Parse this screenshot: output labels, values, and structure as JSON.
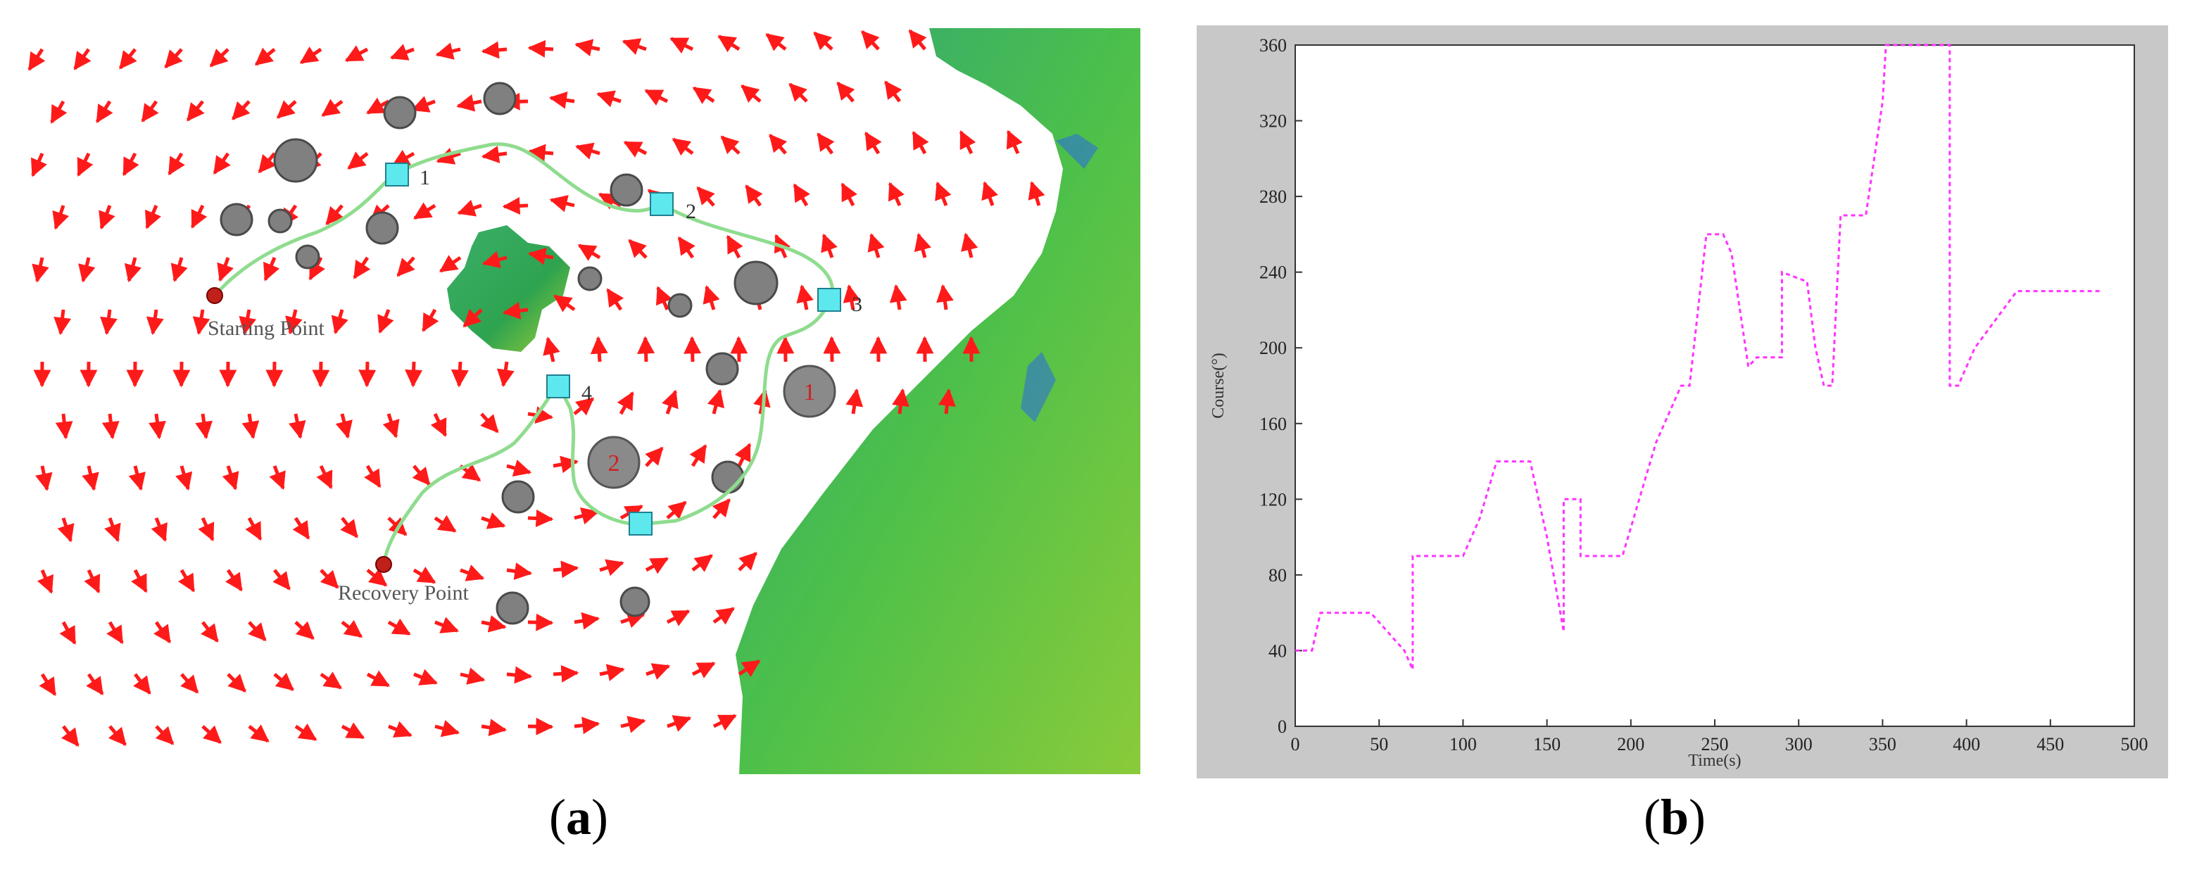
{
  "panel_a": {
    "caption_letter": "a",
    "start_label": "Starting Point",
    "recovery_label": "Recovery Point",
    "waypoints": [
      {
        "label": "1"
      },
      {
        "label": "2"
      },
      {
        "label": "3"
      },
      {
        "label": "4"
      }
    ],
    "targets": [
      {
        "label": "1"
      },
      {
        "label": "2"
      }
    ],
    "colors": {
      "current_arrow": "#ff1a1a",
      "path": "#8fdc8f",
      "waypoint": "#5de8ee",
      "obstacle": "#808080",
      "sea": "#ffffff",
      "land": "#3fae4f"
    }
  },
  "panel_b": {
    "caption_letter": "b",
    "colors": {
      "line": "#ff33ff",
      "frame": "#c8c8c8"
    }
  },
  "chart_data": {
    "type": "line",
    "title": "",
    "xlabel": "Time(s)",
    "ylabel": "Course(°)",
    "xlim": [
      0,
      500
    ],
    "ylim": [
      0,
      360
    ],
    "xticks": [
      0,
      50,
      100,
      150,
      200,
      250,
      300,
      350,
      400,
      450,
      500
    ],
    "yticks": [
      0,
      40,
      80,
      120,
      160,
      200,
      240,
      280,
      320,
      360
    ],
    "grid": false,
    "series": [
      {
        "x": [
          0,
          10,
          15,
          45,
          55,
          65,
          70,
          70,
          100,
          110,
          120,
          140,
          150,
          160,
          160,
          170,
          170,
          195,
          205,
          215,
          230,
          235,
          240,
          245,
          255,
          260,
          270,
          275,
          285,
          290,
          290,
          305,
          310,
          315,
          320,
          325,
          325,
          340,
          350,
          352,
          390,
          390,
          395,
          400,
          405,
          430,
          480
        ],
        "y": [
          40,
          40,
          60,
          60,
          50,
          40,
          30,
          90,
          90,
          110,
          140,
          140,
          100,
          50,
          120,
          120,
          90,
          90,
          120,
          150,
          180,
          180,
          220,
          260,
          260,
          250,
          190,
          195,
          195,
          195,
          240,
          235,
          200,
          180,
          180,
          270,
          270,
          270,
          330,
          360,
          360,
          180,
          180,
          190,
          200,
          230,
          230
        ]
      }
    ]
  }
}
